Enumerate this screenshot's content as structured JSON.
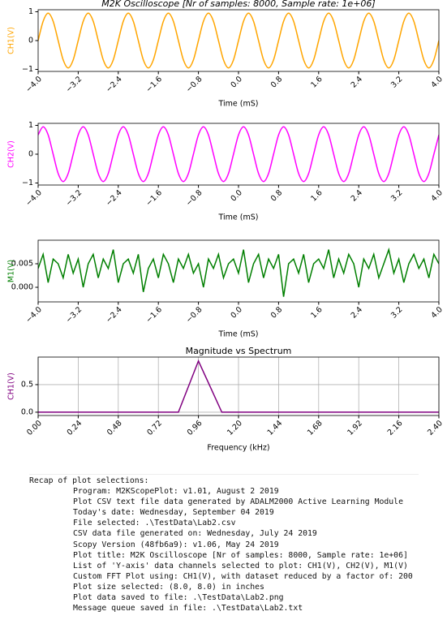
{
  "chart_data": [
    {
      "type": "line",
      "title": "M2K Oscilloscope [Nr of samples: 8000, Sample rate: 1e+06]",
      "x_label": "Time (mS)",
      "y_label": "CH1(V)",
      "x": [
        -4,
        -3.9,
        -3.8,
        -3.7,
        -3.6,
        -3.5,
        -3.4,
        -3.3,
        -3.2,
        -3.1,
        -3,
        -2.9,
        -2.8,
        -2.7,
        -2.6,
        -2.5,
        -2.4,
        -2.3,
        -2.2,
        -2.1,
        -2,
        -1.9,
        -1.8,
        -1.7,
        -1.6,
        -1.5,
        -1.4,
        -1.3,
        -1.2,
        -1.1,
        -1,
        -0.9,
        -0.8,
        -0.7,
        -0.6,
        -0.5,
        -0.4,
        -0.3,
        -0.2,
        -0.1,
        0,
        0.1,
        0.2,
        0.3,
        0.4,
        0.5,
        0.6,
        0.7,
        0.8,
        0.9,
        1,
        1.1,
        1.2,
        1.3,
        1.4,
        1.5,
        1.6,
        1.7,
        1.8,
        1.9,
        2,
        2.1,
        2.2,
        2.3,
        2.4,
        2.5,
        2.6,
        2.7,
        2.8,
        2.9,
        3,
        3.1,
        3.2,
        3.3,
        3.4,
        3.5,
        3.6,
        3.7,
        3.8,
        3.9,
        4
      ],
      "series": [
        {
          "name": "CH1(V)",
          "color": "#ffa500",
          "values": [
            0,
            0.67,
            0.95,
            0.67,
            0,
            -0.67,
            -0.95,
            -0.67,
            0,
            0.67,
            0.95,
            0.67,
            0,
            -0.67,
            -0.95,
            -0.67,
            0,
            0.67,
            0.95,
            0.67,
            0,
            -0.67,
            -0.95,
            -0.67,
            0,
            0.67,
            0.95,
            0.67,
            0,
            -0.67,
            -0.95,
            -0.67,
            0,
            0.67,
            0.95,
            0.67,
            0,
            -0.67,
            -0.95,
            -0.67,
            0,
            0.67,
            0.95,
            0.67,
            0,
            -0.67,
            -0.95,
            -0.67,
            0,
            0.67,
            0.95,
            0.67,
            0,
            -0.67,
            -0.95,
            -0.67,
            0,
            0.67,
            0.95,
            0.67,
            0,
            -0.67,
            -0.95,
            -0.67,
            0,
            0.67,
            0.95,
            0.67,
            0,
            -0.67,
            -0.95,
            -0.67,
            0,
            0.67,
            0.95,
            0.67,
            0,
            -0.67,
            -0.95,
            -0.67,
            0
          ]
        }
      ],
      "xlim": [
        -4,
        4
      ],
      "xticks": [
        {
          "value": -4,
          "label": "−4.0"
        },
        {
          "value": -3.2,
          "label": "−3.2"
        },
        {
          "value": -2.4,
          "label": "−2.4"
        },
        {
          "value": -1.6,
          "label": "−1.6"
        },
        {
          "value": -0.8,
          "label": "−0.8"
        },
        {
          "value": 0,
          "label": "0.0"
        },
        0.8,
        1.6,
        2.4,
        3.2,
        {
          "value": 4,
          "label": "4.0"
        }
      ],
      "ylim": [
        -1.07,
        1.07
      ],
      "yticks": [
        {
          "value": -1,
          "label": "−1"
        },
        0,
        1
      ],
      "grid": false,
      "smooth": true
    },
    {
      "type": "line",
      "x_label": "Time (mS)",
      "y_label": "CH2(V)",
      "x": [
        -4,
        -3.9,
        -3.8,
        -3.7,
        -3.6,
        -3.5,
        -3.4,
        -3.3,
        -3.2,
        -3.1,
        -3,
        -2.9,
        -2.8,
        -2.7,
        -2.6,
        -2.5,
        -2.4,
        -2.3,
        -2.2,
        -2.1,
        -2,
        -1.9,
        -1.8,
        -1.7,
        -1.6,
        -1.5,
        -1.4,
        -1.3,
        -1.2,
        -1.1,
        -1,
        -0.9,
        -0.8,
        -0.7,
        -0.6,
        -0.5,
        -0.4,
        -0.3,
        -0.2,
        -0.1,
        0,
        0.1,
        0.2,
        0.3,
        0.4,
        0.5,
        0.6,
        0.7,
        0.8,
        0.9,
        1,
        1.1,
        1.2,
        1.3,
        1.4,
        1.5,
        1.6,
        1.7,
        1.8,
        1.9,
        2,
        2.1,
        2.2,
        2.3,
        2.4,
        2.5,
        2.6,
        2.7,
        2.8,
        2.9,
        3,
        3.1,
        3.2,
        3.3,
        3.4,
        3.5,
        3.6,
        3.7,
        3.8,
        3.9,
        4
      ],
      "series": [
        {
          "name": "CH2(V)",
          "color": "#ff00ff",
          "values": [
            0.67,
            0.95,
            0.67,
            0,
            -0.67,
            -0.95,
            -0.67,
            0,
            0.67,
            0.95,
            0.67,
            0,
            -0.67,
            -0.95,
            -0.67,
            0,
            0.67,
            0.95,
            0.67,
            0,
            -0.67,
            -0.95,
            -0.67,
            0,
            0.67,
            0.95,
            0.67,
            0,
            -0.67,
            -0.95,
            -0.67,
            0,
            0.67,
            0.95,
            0.67,
            0,
            -0.67,
            -0.95,
            -0.67,
            0,
            0.67,
            0.95,
            0.67,
            0,
            -0.67,
            -0.95,
            -0.67,
            0,
            0.67,
            0.95,
            0.67,
            0,
            -0.67,
            -0.95,
            -0.67,
            0,
            0.67,
            0.95,
            0.67,
            0,
            -0.67,
            -0.95,
            -0.67,
            0,
            0.67,
            0.95,
            0.67,
            0,
            -0.67,
            -0.95,
            -0.67,
            0,
            0.67,
            0.95,
            0.67,
            0,
            -0.67,
            -0.95,
            -0.67,
            0,
            0.67
          ]
        }
      ],
      "xlim": [
        -4,
        4
      ],
      "xticks": [
        {
          "value": -4,
          "label": "−4.0"
        },
        {
          "value": -3.2,
          "label": "−3.2"
        },
        {
          "value": -2.4,
          "label": "−2.4"
        },
        {
          "value": -1.6,
          "label": "−1.6"
        },
        {
          "value": -0.8,
          "label": "−0.8"
        },
        {
          "value": 0,
          "label": "0.0"
        },
        0.8,
        1.6,
        2.4,
        3.2,
        {
          "value": 4,
          "label": "4.0"
        }
      ],
      "ylim": [
        -1.07,
        1.07
      ],
      "yticks": [
        {
          "value": -1,
          "label": "−1"
        },
        0,
        1
      ],
      "grid": false,
      "smooth": true
    },
    {
      "type": "line",
      "x_label": "Time (mS)",
      "y_label": "M1(V)",
      "x": [
        -4,
        -3.9,
        -3.8,
        -3.7,
        -3.6,
        -3.5,
        -3.4,
        -3.3,
        -3.2,
        -3.1,
        -3,
        -2.9,
        -2.8,
        -2.7,
        -2.6,
        -2.5,
        -2.4,
        -2.3,
        -2.2,
        -2.1,
        -2,
        -1.9,
        -1.8,
        -1.7,
        -1.6,
        -1.5,
        -1.4,
        -1.3,
        -1.2,
        -1.1,
        -1,
        -0.9,
        -0.8,
        -0.7,
        -0.6,
        -0.5,
        -0.4,
        -0.3,
        -0.2,
        -0.1,
        0,
        0.1,
        0.2,
        0.3,
        0.4,
        0.5,
        0.6,
        0.7,
        0.8,
        0.9,
        1,
        1.1,
        1.2,
        1.3,
        1.4,
        1.5,
        1.6,
        1.7,
        1.8,
        1.9,
        2,
        2.1,
        2.2,
        2.3,
        2.4,
        2.5,
        2.6,
        2.7,
        2.8,
        2.9,
        3,
        3.1,
        3.2,
        3.3,
        3.4,
        3.5,
        3.6,
        3.7,
        3.8,
        3.9,
        4
      ],
      "series": [
        {
          "name": "M1(V)",
          "color": "#007f00",
          "values": [
            0.004,
            0.007,
            0.001,
            0.006,
            0.005,
            0.002,
            0.007,
            0.003,
            0.006,
            0.0,
            0.005,
            0.007,
            0.002,
            0.006,
            0.004,
            0.008,
            0.001,
            0.005,
            0.006,
            0.003,
            0.007,
            -0.001,
            0.004,
            0.006,
            0.002,
            0.007,
            0.005,
            0.001,
            0.006,
            0.004,
            0.007,
            0.003,
            0.005,
            0.0,
            0.006,
            0.004,
            0.007,
            0.002,
            0.005,
            0.006,
            0.003,
            0.008,
            0.001,
            0.005,
            0.007,
            0.002,
            0.006,
            0.004,
            0.007,
            -0.002,
            0.005,
            0.006,
            0.003,
            0.007,
            0.001,
            0.005,
            0.006,
            0.004,
            0.008,
            0.002,
            0.006,
            0.003,
            0.007,
            0.005,
            0.0,
            0.006,
            0.004,
            0.007,
            0.002,
            0.005,
            0.008,
            0.003,
            0.006,
            0.001,
            0.005,
            0.007,
            0.004,
            0.006,
            0.002,
            0.007,
            0.005
          ]
        }
      ],
      "xlim": [
        -4,
        4
      ],
      "xticks": [
        {
          "value": -4,
          "label": "−4.0"
        },
        {
          "value": -3.2,
          "label": "−3.2"
        },
        {
          "value": -2.4,
          "label": "−2.4"
        },
        {
          "value": -1.6,
          "label": "−1.6"
        },
        {
          "value": -0.8,
          "label": "−0.8"
        },
        {
          "value": 0,
          "label": "0.0"
        },
        0.8,
        1.6,
        2.4,
        3.2,
        {
          "value": 4,
          "label": "4.0"
        }
      ],
      "ylim": [
        -0.0031,
        0.01
      ],
      "yticks": [
        {
          "value": 0,
          "label": "0.000"
        },
        {
          "value": 0.005,
          "label": "0.005"
        }
      ],
      "grid": false,
      "smooth": false
    },
    {
      "type": "line",
      "title": "Magnitude vs Spectrum",
      "x_label": "Frequency (kHz)",
      "y_label": "CH1(V)",
      "x": [
        0,
        0.84,
        0.96,
        1.1,
        2.4
      ],
      "series": [
        {
          "name": "CH1(V)",
          "color": "#800080",
          "values": [
            0,
            0,
            0.93,
            0,
            0
          ]
        }
      ],
      "xlim": [
        0,
        2.4
      ],
      "xticks": [
        {
          "value": 0,
          "label": "0.00"
        },
        0.24,
        0.48,
        0.72,
        0.96,
        {
          "value": 1.2,
          "label": "1.20"
        },
        1.44,
        1.68,
        1.92,
        2.16,
        {
          "value": 2.4,
          "label": "2.40"
        }
      ],
      "ylim": [
        -0.06,
        1.0
      ],
      "yticks": [
        {
          "value": 0,
          "label": "0.0"
        },
        {
          "value": 0.5,
          "label": "0.5"
        }
      ],
      "grid": true,
      "smooth": false
    }
  ],
  "recap": {
    "heading": "Recap of plot selections:",
    "lines": [
      "Program: M2KScopePlot: v1.01, August 2 2019",
      "Plot CSV text file data generated by ADALM2000 Active Learning Module",
      "Today's date: Wednesday, September 04 2019",
      "File selected: .\\TestData\\Lab2.csv",
      "CSV data file generated on: Wednesday, July 24 2019",
      "Scopy Version (48fb6a9): v1.06, May 24 2019",
      "Plot title: M2K Oscilloscope [Nr of samples: 8000, Sample rate: 1e+06]",
      "List of 'Y-axis' data channels selected to plot: CH1(V), CH2(V), M1(V)",
      "Custom FFT Plot using: CH1(V), with dataset reduced by a factor of: 200",
      "Plot size selected: (8.0, 8.0) in inches",
      "Plot data saved to file: .\\TestData\\Lab2.png",
      "Message queue saved in file: .\\TestData\\Lab2.txt"
    ]
  }
}
